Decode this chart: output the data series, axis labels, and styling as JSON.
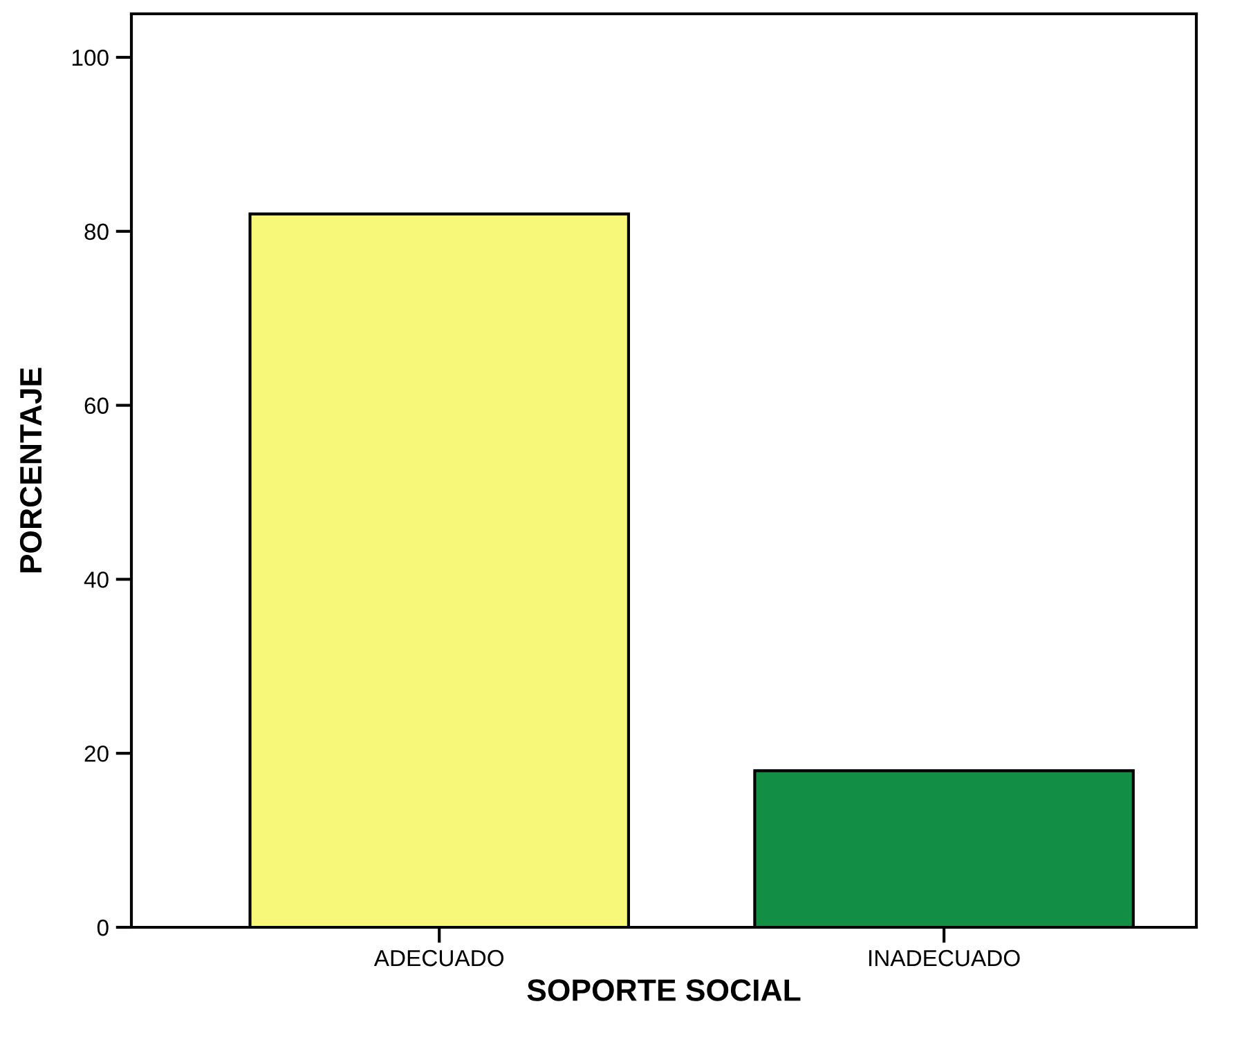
{
  "chart_data": {
    "type": "bar",
    "xlabel": "SOPORTE SOCIAL",
    "ylabel": "PORCENTAJE",
    "categories": [
      "ADECUADO",
      "INADECUADO"
    ],
    "values": [
      82,
      18
    ],
    "colors": [
      "#f7f77a",
      "#128f44"
    ],
    "ylim": [
      0,
      105
    ],
    "yticks": [
      0,
      20,
      40,
      60,
      80,
      100
    ],
    "grid": false,
    "legend": false
  }
}
